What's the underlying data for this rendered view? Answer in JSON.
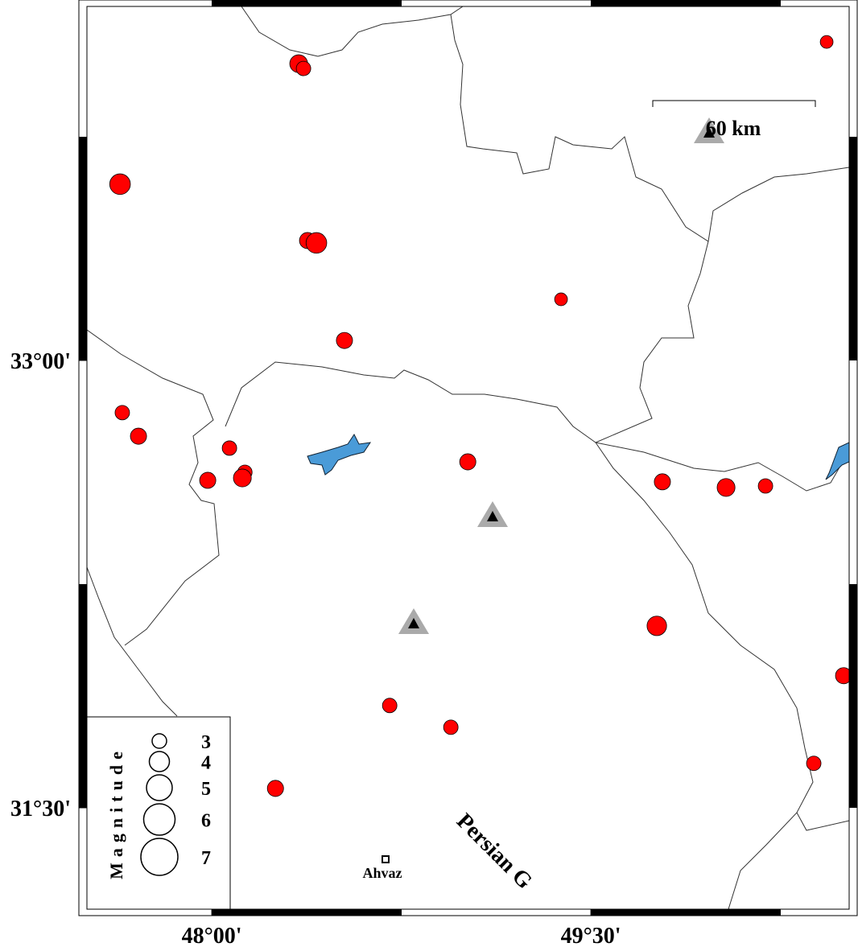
{
  "map": {
    "xlim": [
      47.506,
      50.522
    ],
    "ylim": [
      31.16,
      34.187
    ],
    "xticks": [
      {
        "value": 48,
        "label": "48°00'"
      },
      {
        "value": 49.5,
        "label": "49°30'"
      }
    ],
    "yticks": [
      {
        "value": 33,
        "label": "33°00'"
      },
      {
        "value": 31.5,
        "label": "31°30'"
      }
    ]
  },
  "scale_bar": {
    "label": "60 km"
  },
  "legend": {
    "title": "Magnitude",
    "magnitudes": [
      3,
      4,
      5,
      6,
      7
    ]
  },
  "labels": {
    "city": "Ahvaz",
    "sea": "Persian G"
  },
  "events": [
    {
      "lon": 50.433,
      "lat": 34.068,
      "magnitude": 2.7
    },
    {
      "lon": 48.344,
      "lat": 33.995,
      "magnitude": 3.6
    },
    {
      "lon": 48.363,
      "lat": 33.979,
      "magnitude": 3.0
    },
    {
      "lon": 47.637,
      "lat": 33.591,
      "magnitude": 4.1
    },
    {
      "lon": 48.379,
      "lat": 33.402,
      "magnitude": 3.3
    },
    {
      "lon": 48.414,
      "lat": 33.394,
      "magnitude": 4.1
    },
    {
      "lon": 49.382,
      "lat": 33.205,
      "magnitude": 2.7
    },
    {
      "lon": 48.525,
      "lat": 33.067,
      "magnitude": 3.3
    },
    {
      "lon": 47.646,
      "lat": 32.825,
      "magnitude": 3.0
    },
    {
      "lon": 47.71,
      "lat": 32.746,
      "magnitude": 3.3
    },
    {
      "lon": 48.07,
      "lat": 32.706,
      "magnitude": 3.0
    },
    {
      "lon": 48.131,
      "lat": 32.625,
      "magnitude": 3.0
    },
    {
      "lon": 48.121,
      "lat": 32.606,
      "magnitude": 3.6
    },
    {
      "lon": 47.984,
      "lat": 32.598,
      "magnitude": 3.3
    },
    {
      "lon": 49.013,
      "lat": 32.66,
      "magnitude": 3.3
    },
    {
      "lon": 49.783,
      "lat": 32.593,
      "magnitude": 3.3
    },
    {
      "lon": 50.035,
      "lat": 32.574,
      "magnitude": 3.6
    },
    {
      "lon": 50.191,
      "lat": 32.579,
      "magnitude": 3.0
    },
    {
      "lon": 49.761,
      "lat": 32.11,
      "magnitude": 3.9
    },
    {
      "lon": 50.5,
      "lat": 31.943,
      "magnitude": 3.3
    },
    {
      "lon": 48.704,
      "lat": 31.843,
      "magnitude": 3.0
    },
    {
      "lon": 48.946,
      "lat": 31.77,
      "magnitude": 3.0
    },
    {
      "lon": 50.382,
      "lat": 31.649,
      "magnitude": 3.0
    },
    {
      "lon": 48.252,
      "lat": 31.565,
      "magnitude": 3.3
    }
  ]
}
